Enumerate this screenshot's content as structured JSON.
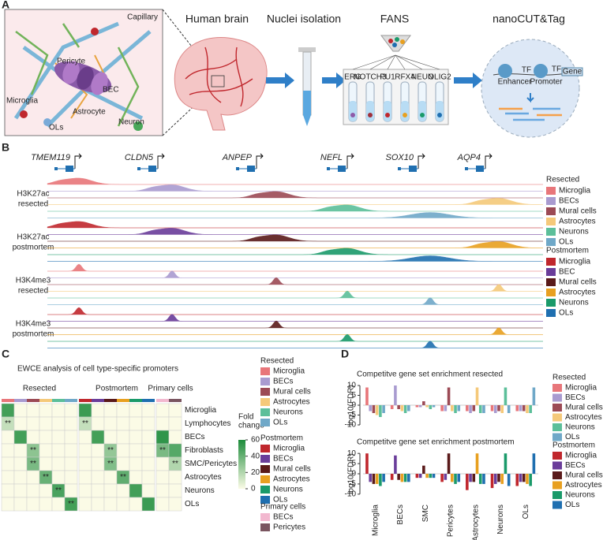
{
  "A": {
    "label": "A",
    "capillary": "Capillary",
    "cells": [
      "Pericyte",
      "Microglia",
      "BEC",
      "Astrocyte",
      "Neuron",
      "OLs"
    ],
    "steps": [
      "Human brain",
      "Nuclei isolation",
      "FANS",
      "nanoCUT&Tag"
    ],
    "markers": [
      {
        "name": "ERG",
        "color": "#8e5aa8"
      },
      {
        "name": "NOTCH3",
        "color": "#a0303a"
      },
      {
        "name": "PU1",
        "color": "#c0272d"
      },
      {
        "name": "RFX4",
        "color": "#e8a020"
      },
      {
        "name": "NEUN",
        "color": "#1a9a6a"
      },
      {
        "name": "OLIG2",
        "color": "#1f6fb0"
      }
    ],
    "nucleus": {
      "tf": "TF",
      "enhancer": "Enhancer",
      "promoter": "Promoter",
      "gene": "Gene"
    }
  },
  "B": {
    "label": "B",
    "genes": [
      "TMEM119",
      "CLDN5",
      "ANPEP",
      "NEFL",
      "SOX10",
      "AQP4"
    ],
    "tracks": [
      [
        "H3K27ac",
        "resected"
      ],
      [
        "H3K27ac",
        "postmortem"
      ],
      [
        "H3K4me3",
        "resected"
      ],
      [
        "H3K4me3",
        "postmortem"
      ]
    ],
    "legend": [
      {
        "title": "Resected",
        "items": [
          {
            "name": "Microglia",
            "color": "#e8767a"
          },
          {
            "name": "BECs",
            "color": "#a99bd0"
          },
          {
            "name": "Mural cells",
            "color": "#9c4a55"
          },
          {
            "name": "Astrocytes",
            "color": "#f5c97a"
          },
          {
            "name": "Neurons",
            "color": "#5cbf9a"
          },
          {
            "name": "OLs",
            "color": "#6fa8c8"
          }
        ]
      },
      {
        "title": "Postmortem",
        "items": [
          {
            "name": "Microglia",
            "color": "#c0272d"
          },
          {
            "name": "BEC",
            "color": "#6a3d9a"
          },
          {
            "name": "Mural cells",
            "color": "#5a1a1a"
          },
          {
            "name": "Astrocytes",
            "color": "#e8a020"
          },
          {
            "name": "Neurons",
            "color": "#1a9a6a"
          },
          {
            "name": "OLs",
            "color": "#1f6fb0"
          }
        ]
      }
    ]
  },
  "C": {
    "label": "C",
    "title": "EWCE analysis of cell type-specific promoters",
    "rows": [
      "Microglia",
      "Lymphocytes",
      "BECs",
      "Fibroblasts",
      "SMC/Pericytes",
      "Astrocytes",
      "Neurons",
      "OLs"
    ],
    "groups": [
      {
        "title": "Resected",
        "values": [
          [
            50,
            0,
            0,
            0,
            0,
            0
          ],
          [
            15,
            0,
            0,
            0,
            0,
            0
          ],
          [
            0,
            50,
            0,
            0,
            0,
            0
          ],
          [
            0,
            0,
            30,
            0,
            0,
            0
          ],
          [
            0,
            0,
            35,
            0,
            0,
            0
          ],
          [
            0,
            0,
            0,
            40,
            0,
            0
          ],
          [
            0,
            0,
            0,
            0,
            48,
            0
          ],
          [
            0,
            0,
            0,
            0,
            0,
            50
          ]
        ],
        "marks": [
          [
            null,
            null,
            null,
            null,
            null,
            null
          ],
          [
            "**",
            null,
            null,
            null,
            null,
            null
          ],
          [
            null,
            null,
            null,
            null,
            null,
            null
          ],
          [
            null,
            null,
            "**",
            null,
            null,
            null
          ],
          [
            null,
            null,
            "**",
            null,
            null,
            null
          ],
          [
            null,
            null,
            null,
            "**",
            null,
            null
          ],
          [
            null,
            null,
            null,
            null,
            "**",
            null
          ],
          [
            null,
            null,
            null,
            null,
            null,
            "**"
          ]
        ]
      },
      {
        "title": "Postmortem",
        "values": [
          [
            52,
            0,
            0,
            0,
            0,
            0
          ],
          [
            15,
            0,
            0,
            0,
            0,
            0
          ],
          [
            0,
            50,
            0,
            0,
            0,
            0
          ],
          [
            0,
            0,
            28,
            0,
            0,
            0
          ],
          [
            0,
            0,
            33,
            0,
            0,
            0
          ],
          [
            0,
            0,
            0,
            42,
            0,
            0
          ],
          [
            0,
            0,
            0,
            0,
            50,
            0
          ],
          [
            0,
            0,
            0,
            0,
            0,
            52
          ]
        ],
        "marks": [
          [
            null,
            null,
            null,
            null,
            null,
            null
          ],
          [
            "**",
            null,
            null,
            null,
            null,
            null
          ],
          [
            null,
            null,
            null,
            null,
            null,
            null
          ],
          [
            null,
            null,
            "**",
            null,
            null,
            null
          ],
          [
            null,
            null,
            "**",
            null,
            null,
            null
          ],
          [
            null,
            null,
            null,
            "**",
            null,
            null
          ],
          [
            null,
            null,
            null,
            null,
            null,
            null
          ],
          [
            null,
            null,
            null,
            null,
            null,
            null
          ]
        ]
      },
      {
        "title": "Primary cells",
        "values": [
          [
            0,
            0
          ],
          [
            0,
            0
          ],
          [
            55,
            0
          ],
          [
            35,
            45
          ],
          [
            0,
            20
          ],
          [
            0,
            0
          ],
          [
            0,
            0
          ],
          [
            0,
            0
          ]
        ],
        "marks": [
          [
            null,
            null
          ],
          [
            null,
            null
          ],
          [
            null,
            null
          ],
          [
            "**",
            null
          ],
          [
            null,
            "**"
          ],
          [
            null,
            null
          ],
          [
            null,
            null
          ],
          [
            null,
            null
          ]
        ]
      }
    ],
    "scale": {
      "title": [
        "Fold",
        "change"
      ],
      "range": [
        0,
        60
      ],
      "ticks": [
        60,
        40,
        20,
        0
      ],
      "colors": [
        "#fbfbe6",
        "#1e8c3c"
      ]
    },
    "legend": [
      {
        "title": "Resected",
        "items": [
          {
            "name": "Microglia",
            "color": "#e8767a"
          },
          {
            "name": "BECs",
            "color": "#a99bd0"
          },
          {
            "name": "Mural cells",
            "color": "#9c4a55"
          },
          {
            "name": "Astrocytes",
            "color": "#f5c97a"
          },
          {
            "name": "Neurons",
            "color": "#5cbf9a"
          },
          {
            "name": "OLs",
            "color": "#6fa8c8"
          }
        ]
      },
      {
        "title": "Postmortem",
        "items": [
          {
            "name": "Microglia",
            "color": "#c0272d"
          },
          {
            "name": "BECs",
            "color": "#6a3d9a"
          },
          {
            "name": "Mural cells",
            "color": "#5a1a1a"
          },
          {
            "name": "Astrocytes",
            "color": "#e8a020"
          },
          {
            "name": "Neurons",
            "color": "#1a9a6a"
          },
          {
            "name": "OLs",
            "color": "#1f6fb0"
          }
        ]
      },
      {
        "title": "Primary cells",
        "items": [
          {
            "name": "BECs",
            "color": "#f2b8cf"
          },
          {
            "name": "Pericytes",
            "color": "#7a5560"
          }
        ]
      }
    ]
  },
  "D": {
    "label": "D",
    "ylabel": "log10(FDR)",
    "categories": [
      "Microglia",
      "BECs",
      "SMC",
      "Pericytes",
      "Astrocytes",
      "Neurons",
      "OLs"
    ],
    "charts": [
      {
        "title": "Competitve gene set enrichment resected",
        "legend_title": "Resected",
        "ylim": [
          -12,
          12
        ],
        "yticks": [
          10,
          5,
          0,
          -5,
          -10
        ],
        "series": [
          {
            "name": "Microglia",
            "color": "#e8767a",
            "values": [
              9,
              -2,
              -1,
              -3,
              -3,
              -3,
              -3
            ]
          },
          {
            "name": "BECs",
            "color": "#a99bd0",
            "values": [
              -3,
              10,
              -1,
              -3,
              -4,
              -4,
              -3
            ]
          },
          {
            "name": "Mural cells",
            "color": "#9c4a55",
            "values": [
              -4,
              -2,
              2,
              9,
              -3,
              -3,
              -3
            ]
          },
          {
            "name": "Astrocytes",
            "color": "#f5c97a",
            "values": [
              -5,
              -3,
              -1,
              -3,
              9,
              -4,
              -4
            ]
          },
          {
            "name": "Neurons",
            "color": "#5cbf9a",
            "values": [
              -6,
              -4,
              -2,
              -4,
              -4,
              9,
              -4
            ]
          },
          {
            "name": "OLs",
            "color": "#6fa8c8",
            "values": [
              -4,
              -3,
              -1,
              -3,
              -4,
              -4,
              9
            ]
          }
        ]
      },
      {
        "title": "Competitve gene set enrichment postmortem",
        "legend_title": "Postmortem",
        "ylim": [
          -12,
          12
        ],
        "yticks": [
          10,
          5,
          0,
          -5,
          -10
        ],
        "series": [
          {
            "name": "Microglia",
            "color": "#c0272d",
            "values": [
              10,
              -3,
              -2,
              -4,
              -8,
              -7,
              -6
            ]
          },
          {
            "name": "BECs",
            "color": "#6a3d9a",
            "values": [
              -4,
              9,
              -2,
              -3,
              -4,
              -5,
              -4
            ]
          },
          {
            "name": "Mural cells",
            "color": "#5a1a1a",
            "values": [
              -5,
              -3,
              4,
              10,
              -4,
              -4,
              -4
            ]
          },
          {
            "name": "Astrocytes",
            "color": "#e8a020",
            "values": [
              -5,
              -4,
              -2,
              -4,
              10,
              -5,
              -5
            ]
          },
          {
            "name": "Neurons",
            "color": "#1a9a6a",
            "values": [
              -6,
              -4,
              -2,
              -5,
              -5,
              10,
              -6
            ]
          },
          {
            "name": "OLs",
            "color": "#1f6fb0",
            "values": [
              -4,
              -4,
              -2,
              -4,
              -5,
              -6,
              10
            ]
          }
        ]
      }
    ]
  }
}
